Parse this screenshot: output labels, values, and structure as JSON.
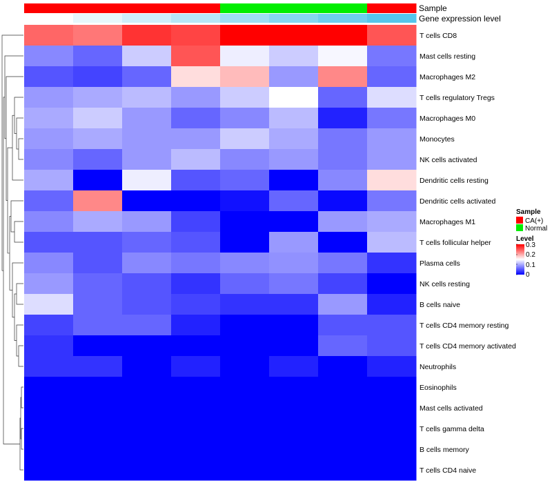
{
  "chart_data": {
    "type": "heatmap",
    "column_annotations": [
      {
        "label": "Sample",
        "values": [
          "CA(+)",
          "CA(+)",
          "CA(+)",
          "CA(+)",
          "Normal",
          "Normal",
          "Normal",
          "CA(+)"
        ]
      },
      {
        "label": "Gene expression level",
        "values": [
          0.02,
          0.06,
          0.1,
          0.14,
          0.18,
          0.22,
          0.26,
          0.3
        ]
      }
    ],
    "rows": [
      "T cells CD8",
      "Mast cells resting",
      "Macrophages M2",
      "T cells regulatory  Tregs",
      "Macrophages M0",
      "Monocytes",
      "NK cells activated",
      "Dendritic cells resting",
      "Dendritic cells activated",
      "Macrophages M1",
      "T cells follicular helper",
      "Plasma cells",
      "NK cells resting",
      "B cells naive",
      "T cells CD4 memory resting",
      "T cells CD4 memory activated",
      "Neutrophils",
      "Eosinophils",
      "Mast cells activated",
      "T cells gamma delta",
      "B cells memory",
      "T cells CD4 naive"
    ],
    "values": [
      [
        0.24,
        0.23,
        0.27,
        0.26,
        0.3,
        0.3,
        0.3,
        0.25
      ],
      [
        0.08,
        0.06,
        0.12,
        0.25,
        0.14,
        0.12,
        0.145,
        0.07
      ],
      [
        0.05,
        0.04,
        0.06,
        0.17,
        0.19,
        0.09,
        0.22,
        0.06
      ],
      [
        0.09,
        0.1,
        0.11,
        0.09,
        0.12,
        0.15,
        0.06,
        0.13
      ],
      [
        0.1,
        0.12,
        0.09,
        0.06,
        0.08,
        0.11,
        0.02,
        0.07
      ],
      [
        0.09,
        0.1,
        0.09,
        0.09,
        0.12,
        0.1,
        0.07,
        0.09
      ],
      [
        0.08,
        0.06,
        0.09,
        0.11,
        0.08,
        0.09,
        0.07,
        0.09
      ],
      [
        0.1,
        0.0,
        0.14,
        0.05,
        0.06,
        0.0,
        0.08,
        0.17
      ],
      [
        0.06,
        0.22,
        0.0,
        0.0,
        0.01,
        0.06,
        0.005,
        0.07
      ],
      [
        0.08,
        0.1,
        0.09,
        0.04,
        0.0,
        0.0,
        0.09,
        0.1
      ],
      [
        0.05,
        0.05,
        0.06,
        0.05,
        0.0,
        0.09,
        0.0,
        0.11
      ],
      [
        0.08,
        0.05,
        0.08,
        0.07,
        0.08,
        0.085,
        0.07,
        0.03
      ],
      [
        0.09,
        0.06,
        0.05,
        0.03,
        0.06,
        0.07,
        0.04,
        0.0
      ],
      [
        0.13,
        0.06,
        0.05,
        0.04,
        0.03,
        0.03,
        0.09,
        0.02
      ],
      [
        0.04,
        0.06,
        0.06,
        0.02,
        0.0,
        0.0,
        0.05,
        0.05
      ],
      [
        0.03,
        0.0,
        0.0,
        0.0,
        0.0,
        0.0,
        0.06,
        0.05
      ],
      [
        0.03,
        0.03,
        0.0,
        0.02,
        0.0,
        0.02,
        0.0,
        0.02
      ],
      [
        0.0,
        0.0,
        0.0,
        0.0,
        0.0,
        0.0,
        0.0,
        0.0
      ],
      [
        0.0,
        0.0,
        0.0,
        0.0,
        0.0,
        0.0,
        0.0,
        0.0
      ],
      [
        0.0,
        0.0,
        0.0,
        0.0,
        0.0,
        0.0,
        0.0,
        0.0
      ],
      [
        0.0,
        0.0,
        0.0,
        0.0,
        0.0,
        0.0,
        0.0,
        0.0
      ],
      [
        0.0,
        0.0,
        0.0,
        0.0,
        0.0,
        0.0,
        0.0,
        0.0
      ]
    ],
    "color_scale": {
      "min": 0,
      "max": 0.3,
      "low_color": "#0000ff",
      "mid_color": "#ffffff",
      "high_color": "#ff0000"
    },
    "legends": {
      "sample": {
        "title": "Sample",
        "entries": [
          {
            "label": "CA(+)",
            "color": "#ff0000"
          },
          {
            "label": "Normal",
            "color": "#00ee00"
          }
        ]
      },
      "level": {
        "title": "Level",
        "ticks": [
          "0.3",
          "0.2",
          "0.1",
          "0"
        ]
      }
    },
    "gene_annotation_colors": {
      "low": "#ffffff",
      "high": "#56c6ec"
    },
    "row_dendrogram": true,
    "grid": false,
    "legend_position": "right"
  }
}
